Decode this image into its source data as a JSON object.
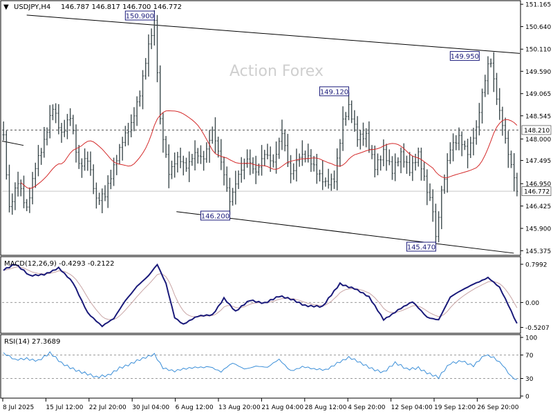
{
  "colors": {
    "background": "#ffffff",
    "frame": "#000000",
    "bars": "#3e4b4e",
    "ma": "#d42a2a",
    "macd_line": "#1a1a7a",
    "macd_signal": "#c8a4a4",
    "rsi": "#3a8ed8",
    "watermark": "#cfcfcf",
    "level_dash": "#555555",
    "channel": "#000000"
  },
  "header": {
    "arrow": "▼",
    "symbol": "USDJPY,H4",
    "ohlc": "146.787 146.817 146.700 146.772"
  },
  "watermark": "Action Forex",
  "chart_data": [
    {
      "type": "candlestick",
      "panel": "price",
      "y_ticks": [
        "151.165",
        "150.640",
        "150.110",
        "149.590",
        "149.065",
        "148.545",
        "148.000",
        "147.495",
        "146.950",
        "146.425",
        "145.900",
        "145.375"
      ],
      "ylim": [
        145.3,
        151.2
      ],
      "current_price": "146.772",
      "current_price_value": 146.772,
      "level_dashed": {
        "label": "148.210",
        "value": 148.21
      },
      "channel_upper": {
        "from": {
          "bar": 8,
          "price": 150.91
        },
        "to": {
          "bar": 180,
          "price": 150.0
        }
      },
      "channel_lower": {
        "from": {
          "bar": 62,
          "price": 146.3
        },
        "to": {
          "bar": 164,
          "price": 145.42
        }
      },
      "ma_line": true,
      "annotations": [
        {
          "label": "150.900",
          "bar": 52,
          "price": 150.9
        },
        {
          "label": "146.200",
          "bar": 78,
          "price": 146.2
        },
        {
          "label": "149.120",
          "bar": 119,
          "price": 149.12
        },
        {
          "label": "145.470",
          "bar": 149,
          "price": 145.47
        },
        {
          "label": "149.950",
          "bar": 164,
          "price": 149.95
        }
      ],
      "anchors": [
        [
          0,
          148.0
        ],
        [
          2,
          146.3
        ],
        [
          5,
          147.0
        ],
        [
          8,
          146.4
        ],
        [
          11,
          147.4
        ],
        [
          14,
          147.9
        ],
        [
          17,
          148.7
        ],
        [
          20,
          148.1
        ],
        [
          23,
          148.6
        ],
        [
          26,
          147.4
        ],
        [
          29,
          147.5
        ],
        [
          32,
          146.5
        ],
        [
          35,
          146.7
        ],
        [
          38,
          147.4
        ],
        [
          41,
          148.0
        ],
        [
          44,
          148.3
        ],
        [
          47,
          149.0
        ],
        [
          50,
          150.2
        ],
        [
          52,
          150.8
        ],
        [
          54,
          148.5
        ],
        [
          57,
          147.2
        ],
        [
          60,
          147.5
        ],
        [
          63,
          147.3
        ],
        [
          66,
          147.7
        ],
        [
          69,
          147.6
        ],
        [
          72,
          148.2
        ],
        [
          75,
          147.4
        ],
        [
          78,
          146.5
        ],
        [
          81,
          147.2
        ],
        [
          84,
          147.6
        ],
        [
          87,
          147.2
        ],
        [
          90,
          147.6
        ],
        [
          93,
          147.4
        ],
        [
          96,
          148.2
        ],
        [
          99,
          147.2
        ],
        [
          102,
          147.6
        ],
        [
          105,
          147.5
        ],
        [
          108,
          147.2
        ],
        [
          111,
          147.0
        ],
        [
          114,
          147.1
        ],
        [
          117,
          148.4
        ],
        [
          119,
          148.7
        ],
        [
          122,
          148.0
        ],
        [
          125,
          148.1
        ],
        [
          128,
          147.4
        ],
        [
          131,
          147.7
        ],
        [
          134,
          147.2
        ],
        [
          137,
          147.6
        ],
        [
          140,
          147.3
        ],
        [
          143,
          147.7
        ],
        [
          146,
          146.8
        ],
        [
          148,
          146.3
        ],
        [
          149,
          145.6
        ],
        [
          151,
          146.7
        ],
        [
          154,
          147.8
        ],
        [
          157,
          148.1
        ],
        [
          160,
          147.7
        ],
        [
          163,
          148.2
        ],
        [
          165,
          149.0
        ],
        [
          167,
          149.7
        ],
        [
          168,
          149.8
        ],
        [
          170,
          149.0
        ],
        [
          172,
          148.4
        ],
        [
          174,
          147.7
        ],
        [
          176,
          147.1
        ],
        [
          177,
          146.77
        ]
      ]
    },
    {
      "type": "line",
      "panel": "macd",
      "label": "MACD(12,26,9) -0.4293 -0.2122",
      "y_ticks": [
        "0.7992",
        "0.00",
        "-0.5207"
      ],
      "ylim": [
        -0.6,
        0.9
      ],
      "anchors": [
        [
          0,
          0.7
        ],
        [
          4,
          0.8
        ],
        [
          9,
          0.55
        ],
        [
          14,
          0.6
        ],
        [
          19,
          0.72
        ],
        [
          24,
          0.4
        ],
        [
          29,
          -0.2
        ],
        [
          34,
          -0.5
        ],
        [
          38,
          -0.35
        ],
        [
          42,
          0.05
        ],
        [
          46,
          0.35
        ],
        [
          50,
          0.55
        ],
        [
          53,
          0.78
        ],
        [
          56,
          0.4
        ],
        [
          59,
          -0.3
        ],
        [
          62,
          -0.45
        ],
        [
          67,
          -0.3
        ],
        [
          72,
          -0.25
        ],
        [
          76,
          0.1
        ],
        [
          80,
          -0.2
        ],
        [
          85,
          0.05
        ],
        [
          90,
          0.0
        ],
        [
          95,
          0.12
        ],
        [
          100,
          0.05
        ],
        [
          104,
          -0.05
        ],
        [
          110,
          -0.1
        ],
        [
          116,
          0.4
        ],
        [
          121,
          0.3
        ],
        [
          126,
          0.1
        ],
        [
          131,
          -0.35
        ],
        [
          136,
          -0.15
        ],
        [
          141,
          0.0
        ],
        [
          146,
          -0.3
        ],
        [
          150,
          -0.35
        ],
        [
          154,
          0.1
        ],
        [
          158,
          0.25
        ],
        [
          162,
          0.4
        ],
        [
          167,
          0.52
        ],
        [
          171,
          0.3
        ],
        [
          174,
          -0.05
        ],
        [
          177,
          -0.43
        ]
      ]
    },
    {
      "type": "line",
      "panel": "rsi",
      "label": "RSI(14) 27.3689",
      "y_ticks": [
        "100",
        "70",
        "30",
        "0"
      ],
      "ylim": [
        0,
        100
      ],
      "levels": [
        70,
        30
      ],
      "anchors": [
        [
          0,
          72
        ],
        [
          4,
          60
        ],
        [
          8,
          65
        ],
        [
          12,
          62
        ],
        [
          16,
          72
        ],
        [
          20,
          55
        ],
        [
          24,
          48
        ],
        [
          28,
          40
        ],
        [
          32,
          30
        ],
        [
          36,
          35
        ],
        [
          40,
          50
        ],
        [
          44,
          55
        ],
        [
          48,
          62
        ],
        [
          52,
          72
        ],
        [
          55,
          50
        ],
        [
          59,
          42
        ],
        [
          63,
          45
        ],
        [
          67,
          50
        ],
        [
          71,
          52
        ],
        [
          75,
          40
        ],
        [
          79,
          55
        ],
        [
          83,
          48
        ],
        [
          87,
          52
        ],
        [
          91,
          47
        ],
        [
          95,
          62
        ],
        [
          99,
          45
        ],
        [
          103,
          50
        ],
        [
          107,
          44
        ],
        [
          111,
          45
        ],
        [
          115,
          58
        ],
        [
          119,
          65
        ],
        [
          123,
          55
        ],
        [
          127,
          48
        ],
        [
          131,
          42
        ],
        [
          135,
          55
        ],
        [
          139,
          45
        ],
        [
          143,
          50
        ],
        [
          147,
          38
        ],
        [
          150,
          30
        ],
        [
          154,
          55
        ],
        [
          158,
          62
        ],
        [
          162,
          52
        ],
        [
          166,
          68
        ],
        [
          169,
          65
        ],
        [
          172,
          55
        ],
        [
          175,
          35
        ],
        [
          177,
          27.37
        ]
      ]
    }
  ],
  "x_ticks": [
    "8 Jul 2025",
    "15 Jul 12:00",
    "22 Jul 20:00",
    "30 Jul 04:00",
    "6 Aug 12:00",
    "13 Aug 20:00",
    "21 Aug 04:00",
    "28 Aug 12:00",
    "4 Sep 20:00",
    "12 Sep 04:00",
    "19 Sep 12:00",
    "26 Sep 20:00"
  ]
}
